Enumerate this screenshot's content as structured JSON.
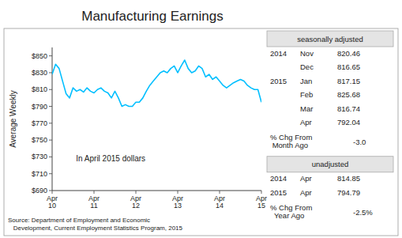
{
  "chart_data": {
    "type": "line",
    "title": "Manufacturing Earnings",
    "y_label": "Average Weekly",
    "color": "#00BFFF",
    "grid": false,
    "annotations": [
      "In April 2015 dollars"
    ],
    "source": "Source: Department of Employment and Economic\n   Development, Current Employment Statistics Program, 2015",
    "ylim": [
      690,
      860
    ],
    "yticks": [
      {
        "value": 690,
        "label": "$690"
      },
      {
        "value": 710,
        "label": "$710"
      },
      {
        "value": 730,
        "label": "$730"
      },
      {
        "value": 750,
        "label": "$750"
      },
      {
        "value": 770,
        "label": "$770"
      },
      {
        "value": 790,
        "label": "$790"
      },
      {
        "value": 810,
        "label": "$810"
      },
      {
        "value": 830,
        "label": "$830"
      },
      {
        "value": 850,
        "label": "$850"
      }
    ],
    "categories": [
      "Apr\n10",
      null,
      null,
      null,
      null,
      null,
      null,
      null,
      null,
      null,
      null,
      null,
      "Apr\n11",
      null,
      null,
      null,
      null,
      null,
      null,
      null,
      null,
      null,
      null,
      null,
      "Apr\n12",
      null,
      null,
      null,
      null,
      null,
      null,
      null,
      null,
      null,
      null,
      null,
      "Apr\n13",
      null,
      null,
      null,
      null,
      null,
      null,
      null,
      null,
      null,
      null,
      null,
      "Apr\n14",
      null,
      null,
      null,
      null,
      null,
      null,
      null,
      null,
      null,
      null,
      null,
      "Apr\n15"
    ],
    "values": [
      828,
      840,
      835,
      820,
      805,
      800,
      812,
      808,
      810,
      807,
      812,
      808,
      806,
      810,
      812,
      808,
      806,
      800,
      808,
      800,
      790,
      792,
      790,
      790,
      795,
      795,
      800,
      808,
      815,
      820,
      825,
      830,
      832,
      830,
      835,
      838,
      830,
      838,
      845,
      835,
      830,
      832,
      838,
      835,
      825,
      828,
      822,
      825,
      820,
      815,
      812,
      815,
      818,
      820,
      822,
      820,
      815,
      812,
      810,
      810,
      795
    ],
    "tables": [
      {
        "header": "seasonally adjusted",
        "rows": [
          [
            "2014",
            "Nov",
            "820.46"
          ],
          [
            null,
            "Dec",
            "816.65"
          ],
          [
            "2015",
            "Jan",
            "817.15"
          ],
          [
            null,
            "Feb",
            "825.68"
          ],
          [
            null,
            "Mar",
            "816.74"
          ],
          [
            null,
            "Apr",
            "792.04"
          ]
        ],
        "change_label": "% Chg From\n Month Ago",
        "change_value": "-3.0"
      },
      {
        "header": "unadjusted",
        "rows": [
          [
            "2014",
            "Apr",
            "814.85"
          ],
          [
            "2015",
            "Apr",
            "794.79"
          ]
        ],
        "change_label": "% Chg From\n  Year Ago",
        "change_value": "-2.5%"
      }
    ]
  }
}
